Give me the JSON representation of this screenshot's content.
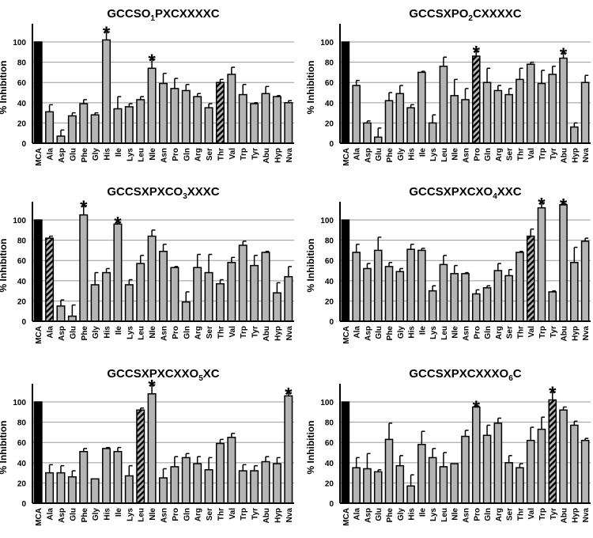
{
  "chart_data": [
    {
      "type": "bar",
      "title": {
        "prefix": "GCCSO",
        "sub": "1",
        "suffix": "PXCXXXXC"
      },
      "ylabel": "% Inhibition",
      "ylim": [
        0,
        118
      ],
      "yticks": [
        0,
        20,
        40,
        60,
        80,
        100
      ],
      "grid": true,
      "categories": [
        "MCA",
        "Ala",
        "Asp",
        "Glu",
        "Phe",
        "Gly",
        "His",
        "Ile",
        "Lys",
        "Leu",
        "Nle",
        "Asn",
        "Pro",
        "Gln",
        "Arg",
        "Ser",
        "Thr",
        "Val",
        "Trp",
        "Tyr",
        "Abu",
        "Hyp",
        "Nva"
      ],
      "values": [
        100,
        31,
        7,
        27,
        39,
        28,
        102,
        34,
        36,
        43,
        74,
        59,
        54,
        52,
        46,
        35,
        60,
        68,
        48,
        39,
        49,
        46,
        40
      ],
      "errors": [
        0,
        7,
        6,
        3,
        4,
        2,
        8,
        12,
        3,
        3,
        9,
        10,
        10,
        6,
        3,
        4,
        3,
        7,
        10,
        1,
        7,
        1,
        2
      ],
      "control": "MCA",
      "native": "Thr",
      "significant": [
        "His",
        "Nle"
      ]
    },
    {
      "type": "bar",
      "title": {
        "prefix": "GCCSXPO",
        "sub": "2",
        "suffix": "CXXXXC"
      },
      "ylabel": "% Inhibition",
      "ylim": [
        0,
        118
      ],
      "yticks": [
        0,
        20,
        40,
        60,
        80,
        100
      ],
      "grid": true,
      "categories": [
        "MCA",
        "Ala",
        "Asp",
        "Glu",
        "Phe",
        "Gly",
        "His",
        "Ile",
        "Lys",
        "Leu",
        "Nle",
        "Asn",
        "Pro",
        "Gln",
        "Arg",
        "Ser",
        "Thr",
        "Val",
        "Trp",
        "Tyr",
        "Abu",
        "Hyp",
        "Nva"
      ],
      "values": [
        100,
        57,
        20,
        6,
        42,
        49,
        35,
        70,
        20,
        76,
        47,
        43,
        86,
        60,
        52,
        48,
        63,
        78,
        59,
        68,
        84,
        16,
        60
      ],
      "errors": [
        0,
        5,
        2,
        9,
        8,
        8,
        3,
        1,
        8,
        9,
        16,
        11,
        5,
        14,
        5,
        6,
        11,
        2,
        13,
        8,
        5,
        4,
        7
      ],
      "control": "MCA",
      "native": "Pro",
      "significant": [
        "Pro",
        "Abu"
      ]
    },
    {
      "type": "bar",
      "title": {
        "prefix": "GCCSXPXCO",
        "sub": "3",
        "suffix": "XXXC"
      },
      "ylabel": "% Inhibition",
      "ylim": [
        0,
        118
      ],
      "yticks": [
        0,
        20,
        40,
        60,
        80,
        100
      ],
      "grid": true,
      "categories": [
        "MCA",
        "Ala",
        "Asp",
        "Glu",
        "Phe",
        "Gly",
        "His",
        "Ile",
        "Lys",
        "Leu",
        "Nle",
        "Asn",
        "Pro",
        "Gln",
        "Arg",
        "Ser",
        "Thr",
        "Val",
        "Trp",
        "Tyr",
        "Abu",
        "Hyp",
        "Nva"
      ],
      "values": [
        100,
        82,
        15,
        5,
        105,
        36,
        48,
        96,
        36,
        57,
        84,
        69,
        53,
        19,
        53,
        48,
        37,
        58,
        75,
        55,
        68,
        28,
        44
      ],
      "errors": [
        0,
        2,
        6,
        11,
        9,
        12,
        4,
        2,
        5,
        8,
        6,
        7,
        1,
        10,
        13,
        18,
        4,
        5,
        4,
        10,
        1,
        10,
        10
      ],
      "control": "MCA",
      "native": "Ala",
      "significant": [
        "Phe",
        "Ile"
      ]
    },
    {
      "type": "bar",
      "title": {
        "prefix": "GCCSXPXCXO",
        "sub": "4",
        "suffix": "XXC"
      },
      "ylabel": "% Inhibition",
      "ylim": [
        0,
        118
      ],
      "yticks": [
        0,
        20,
        40,
        60,
        80,
        100
      ],
      "grid": true,
      "categories": [
        "MCA",
        "Ala",
        "Asp",
        "Glu",
        "Phe",
        "Gly",
        "His",
        "Ile",
        "Lys",
        "Leu",
        "Nle",
        "Asn",
        "Pro",
        "Gln",
        "Arg",
        "Ser",
        "Thr",
        "Val",
        "Trp",
        "Tyr",
        "Abu",
        "Hyp",
        "Nva"
      ],
      "values": [
        100,
        68,
        52,
        70,
        54,
        49,
        71,
        70,
        30,
        56,
        47,
        47,
        27,
        33,
        50,
        45,
        68,
        84,
        112,
        29,
        115,
        58,
        79
      ],
      "errors": [
        0,
        8,
        5,
        13,
        4,
        3,
        5,
        2,
        5,
        9,
        8,
        1,
        4,
        2,
        7,
        6,
        1,
        7,
        5,
        1,
        1,
        15,
        3
      ],
      "control": "MCA",
      "native": "Val",
      "significant": [
        "Trp",
        "Abu"
      ]
    },
    {
      "type": "bar",
      "title": {
        "prefix": "GCCSXPXCXXO",
        "sub": "5",
        "suffix": "XC"
      },
      "ylabel": "% Inhibition",
      "ylim": [
        0,
        118
      ],
      "yticks": [
        0,
        20,
        40,
        60,
        80,
        100
      ],
      "grid": true,
      "categories": [
        "MCA",
        "Ala",
        "Asp",
        "Glu",
        "Phe",
        "Gly",
        "His",
        "Ile",
        "Lys",
        "Leu",
        "Nle",
        "Asn",
        "Pro",
        "Gln",
        "Arg",
        "Ser",
        "Thr",
        "Val",
        "Trp",
        "Tyr",
        "Abu",
        "Hyp",
        "Nva"
      ],
      "values": [
        100,
        30,
        30,
        26,
        51,
        24,
        54,
        51,
        27,
        92,
        108,
        25,
        36,
        45,
        39,
        33,
        59,
        65,
        32,
        32,
        41,
        39,
        106
      ],
      "errors": [
        0,
        8,
        7,
        6,
        3,
        0,
        1,
        4,
        10,
        2,
        9,
        9,
        10,
        4,
        7,
        12,
        4,
        4,
        6,
        5,
        5,
        6,
        3
      ],
      "control": "MCA",
      "native": "Leu",
      "significant": [
        "Nle",
        "Nva"
      ]
    },
    {
      "type": "bar",
      "title": {
        "prefix": "GCCSXPXCXXXO",
        "sub": "6",
        "suffix": "C"
      },
      "ylabel": "% Inhibition",
      "ylim": [
        0,
        118
      ],
      "yticks": [
        0,
        20,
        40,
        60,
        80,
        100
      ],
      "grid": true,
      "categories": [
        "MCA",
        "Ala",
        "Asp",
        "Glu",
        "Phe",
        "Gly",
        "His",
        "Ile",
        "Lys",
        "Leu",
        "Nle",
        "Asn",
        "Pro",
        "Gln",
        "Arg",
        "Ser",
        "Thr",
        "Val",
        "Trp",
        "Tyr",
        "Abu",
        "Hyp",
        "Nva"
      ],
      "values": [
        100,
        35,
        34,
        31,
        63,
        37,
        17,
        58,
        45,
        36,
        39,
        66,
        95,
        67,
        79,
        40,
        35,
        62,
        73,
        102,
        92,
        77,
        62
      ],
      "errors": [
        0,
        10,
        15,
        2,
        16,
        10,
        11,
        13,
        9,
        14,
        0,
        6,
        1,
        10,
        5,
        7,
        4,
        13,
        12,
        8,
        3,
        4,
        2
      ],
      "control": "MCA",
      "native": "Tyr",
      "significant": [
        "Pro",
        "Tyr"
      ]
    }
  ],
  "significance_marker": "*",
  "colors": {
    "bar": "#b4b4b4",
    "control": "#000000",
    "native_hatch": "#000000",
    "grid": "#9a9a9a"
  }
}
